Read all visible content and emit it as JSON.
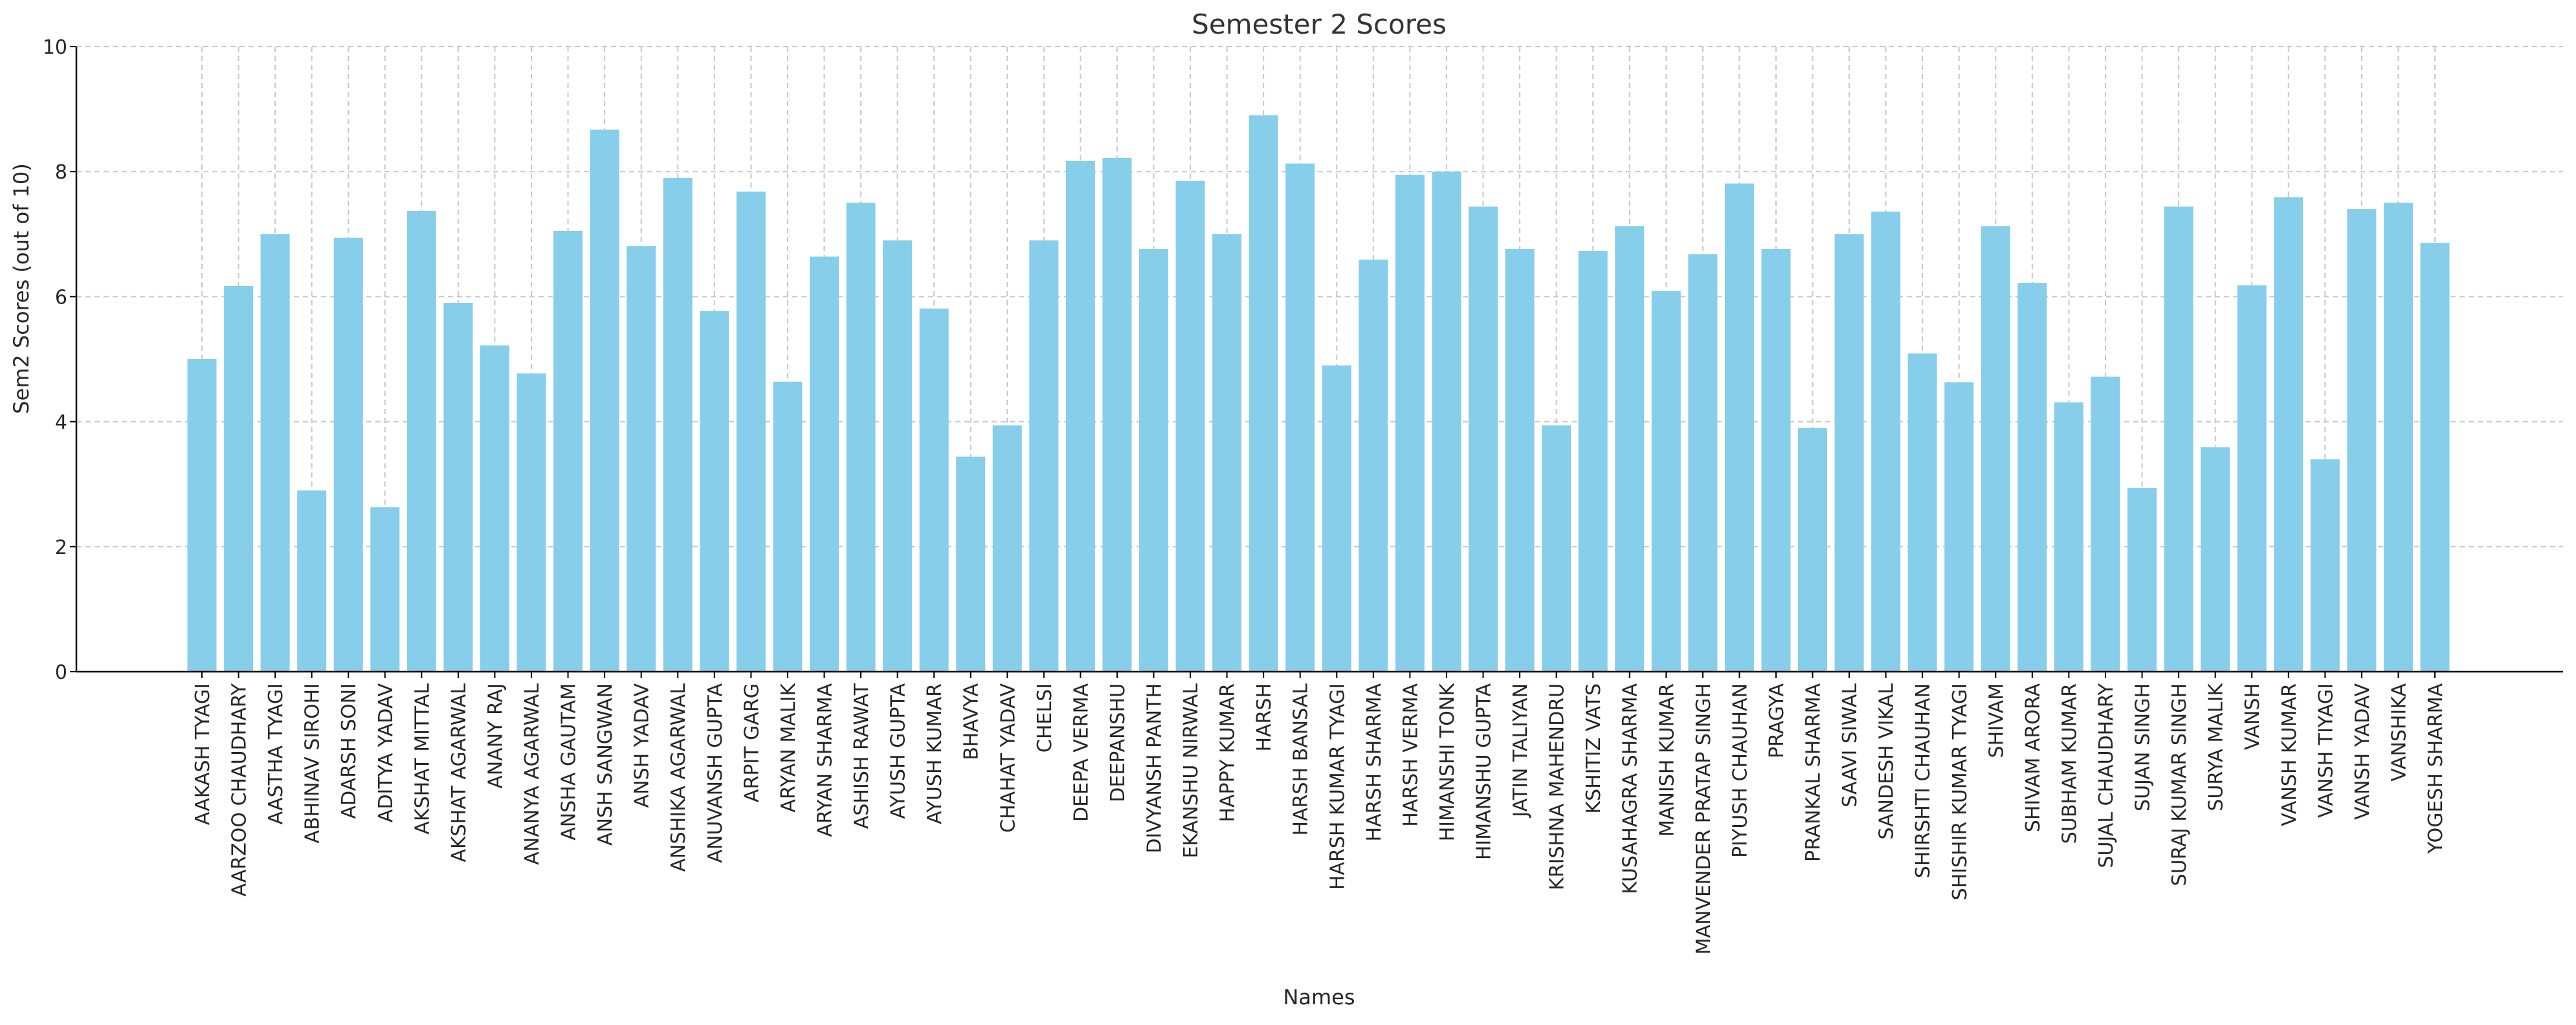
{
  "chart_data": {
    "type": "bar",
    "title": "Semester 2 Scores",
    "xlabel": "Names",
    "ylabel": "Sem2 Scores (out of 10)",
    "ylim": [
      0,
      10
    ],
    "yticks": [
      "0",
      "2",
      "4",
      "6",
      "8",
      "10"
    ],
    "grid": true,
    "bar_color": "#87ceeb",
    "categories": [
      "AAKASH TYAGI",
      "AARZOO CHAUDHARY",
      "AASTHA TYAGI",
      "ABHINAV SIROHI",
      "ADARSH SONI",
      "ADITYA YADAV",
      "AKSHAT MITTAL",
      "AKSHAT AGARWAL",
      "ANANY RAJ",
      "ANANYA AGARWAL",
      "ANSHA GAUTAM",
      "ANSH SANGWAN",
      "ANSH YADAV",
      "ANSHIKA AGARWAL",
      "ANUVANSH GUPTA",
      "ARPIT GARG",
      "ARYAN MALIK",
      "ARYAN SHARMA",
      "ASHISH RAWAT",
      "AYUSH GUPTA",
      "AYUSH KUMAR",
      "BHAVYA",
      "CHAHAT YADAV",
      "CHELSI",
      "DEEPA VERMA",
      "DEEPANSHU",
      "DIVYANSH PANTH",
      "EKANSHU NIRWAL",
      "HAPPY KUMAR",
      "HARSH",
      "HARSH BANSAL",
      "HARSH KUMAR TYAGI",
      "HARSH SHARMA",
      "HARSH VERMA",
      "HIMANSHI TONK",
      "HIMANSHU GUPTA",
      "JATIN TALIYAN",
      "KRISHNA MAHENDRU",
      "KSHITIZ VATS",
      "KUSAHAGRA SHARMA",
      "MANISH KUMAR",
      "MANVENDER PRATAP SINGH",
      "PIYUSH CHAUHAN",
      "PRAGYA",
      "PRANKAL SHARMA",
      "SAAVI SIWAL",
      "SANDESH VIKAL",
      "SHIRSHTI CHAUHAN",
      "SHISHIR KUMAR TYAGI",
      "SHIVAM",
      "SHIVAM ARORA",
      "SUBHAM KUMAR",
      "SUJAL CHAUDHARY",
      "SUJAN SINGH",
      "SURAJ KUMAR SINGH",
      "SURYA MALIK",
      "VANSH",
      "VANSH KUMAR",
      "VANSH TIYAGI",
      "VANSH YADAV",
      "VANSHIKA",
      "YOGESH SHARMA"
    ],
    "values": [
      5.0,
      6.17,
      7.0,
      2.9,
      6.94,
      2.63,
      7.37,
      5.9,
      5.22,
      4.77,
      7.05,
      8.67,
      6.81,
      7.9,
      5.77,
      7.68,
      4.64,
      6.64,
      7.5,
      6.9,
      5.81,
      3.44,
      3.94,
      6.9,
      8.17,
      8.22,
      6.76,
      7.85,
      7.0,
      8.9,
      8.13,
      4.9,
      6.59,
      7.95,
      8.0,
      7.44,
      6.76,
      3.94,
      6.73,
      7.13,
      6.09,
      6.68,
      7.81,
      6.76,
      3.9,
      7.0,
      7.36,
      5.09,
      4.63,
      7.13,
      6.22,
      4.31,
      4.72,
      2.94,
      7.44,
      3.59,
      6.18,
      7.59,
      3.4,
      7.4,
      7.5,
      6.86
    ]
  }
}
